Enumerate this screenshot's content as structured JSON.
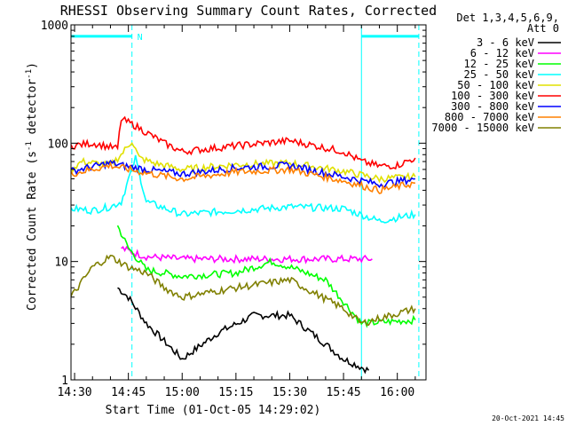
{
  "chart_data": {
    "type": "line",
    "title": "RHESSI Observing Summary Count Rates, Corrected",
    "xlabel": "Start Time (01-Oct-05 14:29:02)",
    "ylabel_main": "Corrected Count Rate (s",
    "ylabel_sup1": "-1",
    "ylabel_mid": " detector",
    "ylabel_sup2": "-1",
    "ylabel_end": ")",
    "y_scale": "log",
    "ylim": [
      1,
      1000
    ],
    "xlim": [
      "14:29",
      "16:08"
    ],
    "x_ticks": [
      "14:30",
      "14:45",
      "15:00",
      "15:15",
      "15:30",
      "15:45",
      "16:00"
    ],
    "y_ticks": [
      "1",
      "10",
      "100",
      "1000"
    ],
    "legend_header": [
      "Det 1,3,4,5,6,9,",
      "Att 0"
    ],
    "legend_position": "top-right, outside plot",
    "timestamp": "20-Oct-2021 14:45",
    "attenuator_bar_label": "N",
    "attenuator_bars": [
      {
        "start": "14:29",
        "end": "14:46"
      },
      {
        "start": "15:50",
        "end": "16:06"
      }
    ],
    "vlines_solid": [
      "14:29",
      "15:50"
    ],
    "vlines_dashed": [
      "14:46",
      "16:06"
    ],
    "series": [
      {
        "name": "3 - 6 keV",
        "color": "#000000",
        "x": [
          "14:42",
          "14:45",
          "14:50",
          "15:00",
          "15:10",
          "15:20",
          "15:30",
          "15:40",
          "15:45",
          "15:52"
        ],
        "y": [
          6,
          5,
          3,
          1.5,
          2.5,
          3.5,
          3.5,
          2,
          1.5,
          1.2
        ]
      },
      {
        "name": "6 - 12 keV",
        "color": "#ff00ff",
        "x": [
          "14:43",
          "14:46",
          "14:50",
          "15:00",
          "15:15",
          "15:30",
          "15:45",
          "15:53"
        ],
        "y": [
          13,
          12,
          11,
          10.5,
          10.5,
          10.5,
          10.5,
          10.5
        ]
      },
      {
        "name": "12 - 25 keV",
        "color": "#00ff00",
        "x": [
          "14:42",
          "14:45",
          "14:50",
          "15:00",
          "15:15",
          "15:25",
          "15:30",
          "15:40",
          "15:50",
          "16:05"
        ],
        "y": [
          20,
          13,
          8.5,
          7.5,
          8,
          10,
          9,
          7,
          3,
          3.2
        ]
      },
      {
        "name": "25 - 50 keV",
        "color": "#00ffff",
        "x": [
          "14:29",
          "14:35",
          "14:40",
          "14:43",
          "14:47",
          "14:50",
          "15:00",
          "15:15",
          "15:30",
          "15:45",
          "15:55",
          "16:05"
        ],
        "y": [
          28,
          27,
          29,
          32,
          75,
          32,
          25,
          27,
          29,
          28,
          22,
          25
        ]
      },
      {
        "name": "50 - 100 keV",
        "color": "#e0e000",
        "x": [
          "14:29",
          "14:32",
          "14:40",
          "14:43",
          "14:46",
          "14:48",
          "14:52",
          "15:00",
          "15:15",
          "15:30",
          "15:45",
          "15:55",
          "16:05"
        ],
        "y": [
          60,
          70,
          65,
          80,
          105,
          75,
          68,
          60,
          66,
          68,
          58,
          50,
          52
        ]
      },
      {
        "name": "100 - 300 keV",
        "color": "#ff0000",
        "x": [
          "14:29",
          "14:35",
          "14:42",
          "14:43",
          "14:45",
          "14:47",
          "14:55",
          "15:00",
          "15:15",
          "15:30",
          "15:45",
          "15:50",
          "15:55",
          "16:00",
          "16:05"
        ],
        "y": [
          95,
          100,
          90,
          160,
          150,
          140,
          100,
          85,
          95,
          105,
          85,
          70,
          64,
          65,
          75
        ]
      },
      {
        "name": "300 - 800 keV",
        "color": "#0000ff",
        "x": [
          "14:29",
          "14:40",
          "14:43",
          "14:50",
          "15:00",
          "15:15",
          "15:30",
          "15:45",
          "15:55",
          "16:05"
        ],
        "y": [
          58,
          68,
          65,
          60,
          55,
          62,
          65,
          52,
          45,
          50
        ]
      },
      {
        "name": "800 - 7000 keV",
        "color": "#ff8000",
        "x": [
          "14:29",
          "14:40",
          "14:43",
          "14:50",
          "15:00",
          "15:15",
          "15:30",
          "15:45",
          "15:55",
          "16:05"
        ],
        "y": [
          55,
          65,
          62,
          56,
          50,
          57,
          60,
          48,
          40,
          46
        ]
      },
      {
        "name": "7000 - 15000 keV",
        "color": "#808000",
        "x": [
          "14:29",
          "14:35",
          "14:40",
          "14:45",
          "14:50",
          "14:55",
          "15:00",
          "15:15",
          "15:30",
          "15:45",
          "15:50",
          "16:05"
        ],
        "y": [
          5,
          9,
          11,
          9,
          8,
          6,
          5,
          6,
          7,
          4,
          3,
          4
        ]
      }
    ]
  }
}
